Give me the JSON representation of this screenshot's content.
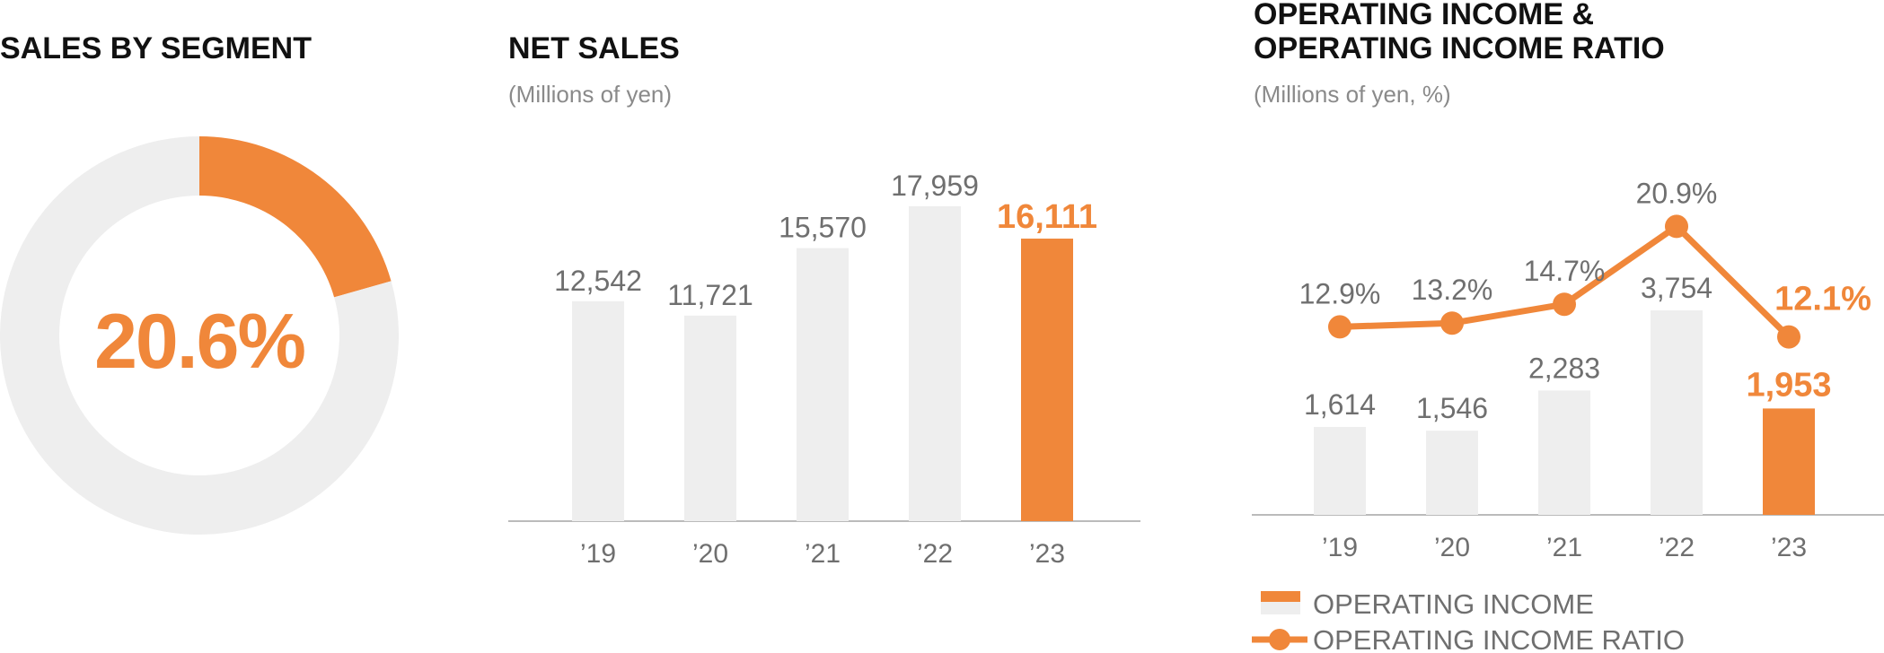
{
  "colors": {
    "highlight": "#F0873A",
    "muted": "#EEEEEE",
    "text": "#6F6F6F",
    "axis": "#BBBBBB"
  },
  "chart_data": [
    {
      "type": "pie",
      "title": "SALES BY SEGMENT",
      "center_label": "20.6%",
      "slices": [
        {
          "value": 20.6,
          "color": "#F0873A"
        },
        {
          "value": 79.4,
          "color": "#EEEEEE"
        }
      ]
    },
    {
      "type": "bar",
      "title": "NET SALES",
      "subtitle": "(Millions of yen)",
      "categories": [
        "’19",
        "’20",
        "’21",
        "’22",
        "’23"
      ],
      "values": [
        12542,
        11721,
        15570,
        17959,
        16111
      ],
      "value_labels": [
        "12,542",
        "11,721",
        "15,570",
        "17,959",
        "16,111"
      ],
      "highlight_index": 4,
      "ylim": [
        0,
        20000
      ]
    },
    {
      "type": "bar",
      "title_lines": [
        "OPERATING INCOME &",
        "OPERATING INCOME RATIO"
      ],
      "subtitle": "(Millions of yen, %)",
      "categories": [
        "’19",
        "’20",
        "’21",
        "’22",
        "’23"
      ],
      "series": [
        {
          "name": "OPERATING INCOME",
          "type": "bar",
          "values": [
            1614,
            1546,
            2283,
            3754,
            1953
          ],
          "labels": [
            "1,614",
            "1,546",
            "2,283",
            "3,754",
            "1,953"
          ]
        },
        {
          "name": "OPERATING INCOME RATIO",
          "type": "line",
          "values": [
            12.9,
            13.2,
            14.7,
            20.9,
            12.1
          ],
          "labels": [
            "12.9%",
            "13.2%",
            "14.7%",
            "20.9%",
            "12.1%"
          ]
        }
      ],
      "highlight_index": 4,
      "ylim": [
        0,
        5500
      ],
      "y2lim": [
        0,
        30
      ]
    }
  ]
}
